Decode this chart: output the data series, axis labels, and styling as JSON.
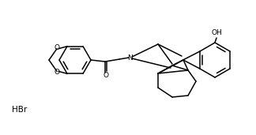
{
  "background_color": "#ffffff",
  "line_color": "#000000",
  "text_color": "#000000",
  "linewidth": 1.1,
  "figsize": [
    3.24,
    1.71
  ],
  "dpi": 100,
  "hbr_label": "HBr",
  "oh_label": "OH",
  "n_label": "N",
  "o_label": "O"
}
